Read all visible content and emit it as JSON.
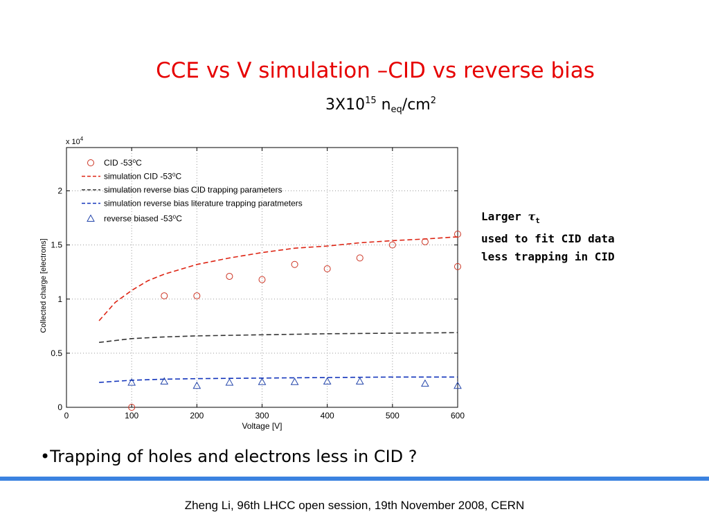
{
  "slide": {
    "title": "CCE vs V simulation –CID vs reverse bias",
    "subtitle_base": "3X10",
    "subtitle_exp": "15",
    "subtitle_n": " n",
    "subtitle_sub": "eq",
    "subtitle_unit": "/cm",
    "subtitle_unit_exp": "2",
    "note_line1_word": "Larger",
    "note_tau": "τ",
    "note_tau_sub": "t",
    "note_line2": "used to fit CID data",
    "note_line3": "less trapping in CID",
    "bullet": "•Trapping of holes and electrons less in CID ?",
    "footer": "Zheng Li, 96th LHCC open session, 19th November 2008, CERN",
    "accent_color": "#3b82e0"
  },
  "chart_data": {
    "type": "line",
    "xlabel": "Voltage [V]",
    "ylabel": "Collected charge [electrons]",
    "y_multiplier": "x 10",
    "y_multiplier_exp": "4",
    "xlim": [
      0,
      600
    ],
    "ylim": [
      0,
      2.4
    ],
    "xticks": [
      0,
      100,
      200,
      300,
      400,
      500,
      600
    ],
    "yticks": [
      0,
      0.5,
      1,
      1.5,
      2
    ],
    "ytick_labels": [
      "0",
      "0.5",
      "1",
      "1.5",
      "2"
    ],
    "grid": true,
    "legend_position": "top-left",
    "series": [
      {
        "name": "CID -53⁰C",
        "style": "marker",
        "marker": "circle",
        "color": "#cc3322",
        "x": [
          100,
          150,
          200,
          250,
          300,
          350,
          400,
          450,
          500,
          550,
          600,
          600
        ],
        "y": [
          0,
          1.03,
          1.03,
          1.21,
          1.18,
          1.32,
          1.28,
          1.38,
          1.5,
          1.53,
          1.6,
          1.3
        ]
      },
      {
        "name": "simulation CID -53⁰C",
        "style": "dashed",
        "color": "#dd2211",
        "x": [
          50,
          75,
          100,
          125,
          150,
          200,
          250,
          300,
          350,
          400,
          450,
          500,
          550,
          600
        ],
        "y": [
          0.8,
          0.97,
          1.08,
          1.17,
          1.23,
          1.32,
          1.38,
          1.43,
          1.47,
          1.49,
          1.52,
          1.54,
          1.555,
          1.575
        ]
      },
      {
        "name": "simulation reverse bias CID trapping parameters",
        "style": "dashed",
        "color": "#333333",
        "x": [
          50,
          100,
          150,
          200,
          300,
          400,
          500,
          600
        ],
        "y": [
          0.6,
          0.635,
          0.65,
          0.66,
          0.67,
          0.68,
          0.685,
          0.69
        ]
      },
      {
        "name": "simulation reverse bias literature trapping paratmeters",
        "style": "dashed",
        "color": "#1133bb",
        "x": [
          50,
          100,
          150,
          200,
          300,
          400,
          500,
          600
        ],
        "y": [
          0.23,
          0.25,
          0.26,
          0.265,
          0.27,
          0.275,
          0.28,
          0.28
        ]
      },
      {
        "name": "reverse biased -53⁰C",
        "style": "marker",
        "marker": "triangle",
        "color": "#2244aa",
        "x": [
          100,
          150,
          200,
          250,
          300,
          350,
          400,
          450,
          550,
          600
        ],
        "y": [
          0.23,
          0.24,
          0.2,
          0.23,
          0.235,
          0.235,
          0.24,
          0.24,
          0.22,
          0.2
        ]
      }
    ]
  }
}
